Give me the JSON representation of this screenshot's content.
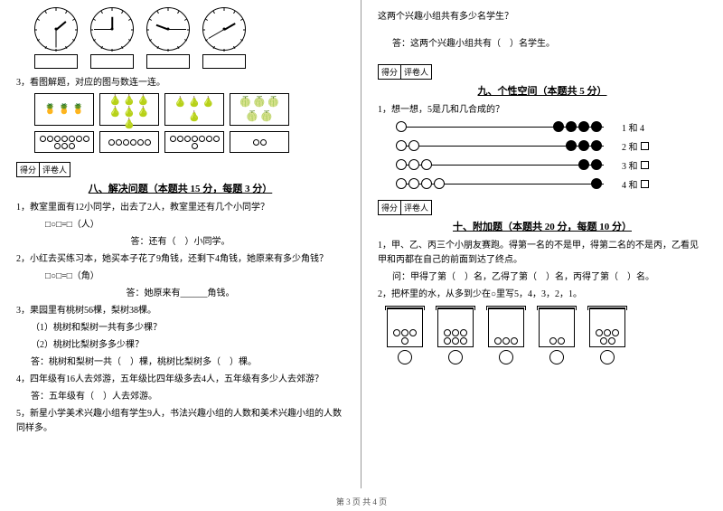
{
  "footer": "第 3 页 共 4 页",
  "left": {
    "q3_title": "3，看图解题，对应的图与数连一连。",
    "clocks": [
      {
        "h_angle": -40,
        "m_angle": 90
      },
      {
        "h_angle": -90,
        "m_angle": 180
      },
      {
        "h_angle": 200,
        "m_angle": 0
      },
      {
        "h_angle": -30,
        "m_angle": 150
      }
    ],
    "fruit_counts": [
      3,
      7,
      4,
      5
    ],
    "circle_counts": [
      10,
      6,
      8,
      2
    ],
    "score_label_a": "得分",
    "score_label_b": "评卷人",
    "sec8_title": "八、解决问题（本题共 15 分，每题 3 分）",
    "q1": "1，教室里面有12小同学，出去了2人，教室里还有几个小同学？",
    "q1_calc": "□○□=□（人）",
    "q1_ans": "答：还有（　）小同学。",
    "q2": "2，小红去买练习本，她买本子花了9角钱，还剩下4角钱，她原来有多少角钱？",
    "q2_calc": "□○□=□（角）",
    "q2_ans": "答：她原来有______角钱。",
    "q3": "3，果园里有桃树56棵，梨树38棵。",
    "q3a": "（1）桃树和梨树一共有多少棵？",
    "q3b": "（2）桃树比梨树多多少棵？",
    "q3ans": "答：桃树和梨树一共（　）棵，桃树比梨树多（　）棵。",
    "q4": "4，四年级有16人去郊游，五年级比四年级多去4人，五年级有多少人去郊游？",
    "q4ans": "答：五年级有（　）人去郊游。",
    "q5": "5，新星小学美术兴趣小组有学生9人，书法兴趣小组的人数和美术兴趣小组的人数同样多。"
  },
  "right": {
    "q_cont": "这两个兴趣小组共有多少名学生？",
    "q_cont_ans": "答：这两个兴趣小组共有（　）名学生。",
    "score_label_a": "得分",
    "score_label_b": "评卷人",
    "sec9_title": "九、个性空间（本题共 5 分）",
    "q9_1": "1，想一想，5是几和几合成的？",
    "bead_rows": [
      {
        "empty": 1,
        "filled": 4,
        "label": "1 和 4"
      },
      {
        "empty": 2,
        "filled": 3,
        "label_prefix": "2 和"
      },
      {
        "empty": 3,
        "filled": 2,
        "label_prefix": "3 和"
      },
      {
        "empty": 4,
        "filled": 1,
        "label_prefix": "4 和"
      }
    ],
    "sec10_title": "十、附加题（本题共 20 分，每题 10 分）",
    "q10_1a": "1，甲、乙、丙三个小朋友赛跑。得第一名的不是甲，得第二名的不是丙，乙看见甲和丙都在自己的前面到达了终点。",
    "q10_1b": "问：甲得了第（　）名，乙得了第（　）名，丙得了第（　）名。",
    "q10_2": "2，把杯里的水，从多到少在○里写5，4，3，2，1。",
    "cups": [
      4,
      6,
      3,
      2,
      5
    ]
  }
}
